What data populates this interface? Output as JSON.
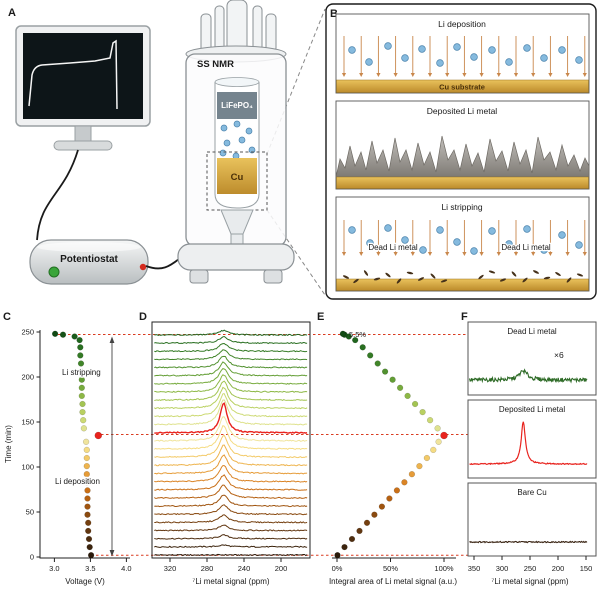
{
  "panel_labels": {
    "a": "A",
    "b": "B",
    "c": "C",
    "d": "D",
    "e": "E",
    "f": "F"
  },
  "panel_a": {
    "potentiostat_label": "Potentiostat",
    "nmr_label": "SS NMR",
    "cell_top_label": "LiFePO₄",
    "cell_bottom_label": "Cu"
  },
  "panel_b": {
    "deposition_title": "Li deposition",
    "substrate_label": "Cu substrate",
    "deposited_title": "Deposited Li metal",
    "stripping_title": "Li stripping",
    "dead_li_label_left": "Dead Li metal",
    "dead_li_label_right": "Dead Li metal",
    "colors": {
      "substrate": "#d7a945",
      "ion": "#85bade",
      "arrow": "#c9874b",
      "deposit": "#a39f9a",
      "flake": "#45311b"
    }
  },
  "chart_data": [
    {
      "id": "c-voltage-vs-time",
      "type": "scatter",
      "xlabel": "Voltage (V)",
      "ylabel": "Time (min)",
      "xticks": [
        3.0,
        3.5,
        4.0
      ],
      "yticks": [
        0,
        50,
        100,
        150,
        200,
        250
      ],
      "xlim": [
        2.8,
        4.05
      ],
      "ylim": [
        0,
        250
      ],
      "annotations": {
        "stripping": "Li stripping",
        "deposition": "Li deposition"
      },
      "highlight_color": "#e8231e",
      "points": [
        {
          "t": 2,
          "v": 3.51,
          "integral": 0.5,
          "color": "#2b1a0a"
        },
        {
          "t": 11,
          "v": 3.49,
          "integral": 7,
          "color": "#3c240d"
        },
        {
          "t": 20,
          "v": 3.48,
          "integral": 14,
          "color": "#4e2d0f"
        },
        {
          "t": 29,
          "v": 3.47,
          "integral": 21,
          "color": "#613610"
        },
        {
          "t": 38,
          "v": 3.47,
          "integral": 28,
          "color": "#754010"
        },
        {
          "t": 47,
          "v": 3.46,
          "integral": 35,
          "color": "#8a4a10"
        },
        {
          "t": 56,
          "v": 3.46,
          "integral": 42,
          "color": "#a05510"
        },
        {
          "t": 65,
          "v": 3.46,
          "integral": 49,
          "color": "#b66112"
        },
        {
          "t": 74,
          "v": 3.46,
          "integral": 56,
          "color": "#ca7018"
        },
        {
          "t": 83,
          "v": 3.45,
          "integral": 63,
          "color": "#da8426"
        },
        {
          "t": 92,
          "v": 3.45,
          "integral": 70,
          "color": "#e69c38"
        },
        {
          "t": 101,
          "v": 3.45,
          "integral": 77,
          "color": "#eeb44e"
        },
        {
          "t": 110,
          "v": 3.45,
          "integral": 84,
          "color": "#f3ca68"
        },
        {
          "t": 119,
          "v": 3.45,
          "integral": 90,
          "color": "#f5dc84"
        },
        {
          "t": 128,
          "v": 3.44,
          "integral": 95,
          "color": "#f0e49c"
        },
        {
          "t": 135,
          "v": 3.61,
          "integral": 100,
          "color": "#e8231e"
        },
        {
          "t": 143,
          "v": 3.41,
          "integral": 94,
          "color": "#dfe28e"
        },
        {
          "t": 152,
          "v": 3.4,
          "integral": 87,
          "color": "#cdda74"
        },
        {
          "t": 161,
          "v": 3.39,
          "integral": 80,
          "color": "#b9d060"
        },
        {
          "t": 170,
          "v": 3.39,
          "integral": 73,
          "color": "#a3c452"
        },
        {
          "t": 179,
          "v": 3.38,
          "integral": 66,
          "color": "#8db846"
        },
        {
          "t": 188,
          "v": 3.38,
          "integral": 59,
          "color": "#77ab3d"
        },
        {
          "t": 197,
          "v": 3.38,
          "integral": 52,
          "color": "#639e35"
        },
        {
          "t": 206,
          "v": 3.37,
          "integral": 45,
          "color": "#51912f"
        },
        {
          "t": 215,
          "v": 3.37,
          "integral": 38,
          "color": "#418529"
        },
        {
          "t": 224,
          "v": 3.36,
          "integral": 31,
          "color": "#347a25"
        },
        {
          "t": 233,
          "v": 3.36,
          "integral": 24,
          "color": "#296f21"
        },
        {
          "t": 241,
          "v": 3.35,
          "integral": 17,
          "color": "#20651e"
        },
        {
          "t": 245,
          "v": 3.28,
          "integral": 11,
          "color": "#1a5c1b"
        },
        {
          "t": 247,
          "v": 3.12,
          "integral": 7,
          "color": "#155317"
        },
        {
          "t": 248,
          "v": 3.01,
          "integral": 5.5,
          "color": "#114a14"
        }
      ]
    },
    {
      "id": "d-nmr-stack",
      "type": "line-stack",
      "xlabel": "⁷Li metal signal (ppm)",
      "xticks": [
        320,
        280,
        240,
        200
      ],
      "x_axis_reversed": true,
      "peak_center_ppm": 262,
      "note": "one spectrum per point of chart C (t = 2 to 241 min, bottom to top); peak amplitude proportional to integral; red spectrum = 100% deposition maximum"
    },
    {
      "id": "e-integral-vs-time",
      "type": "scatter",
      "xlabel": "Integral area of Li metal signal (a.u.)",
      "xtick_labels": [
        "0%",
        "50%",
        "100%"
      ],
      "xtick_values": [
        0,
        50,
        100
      ],
      "annotation_top": "5.5%",
      "points_ref": "same points as chart c-voltage-vs-time (integral vs t)"
    },
    {
      "id": "f-reference-spectra",
      "type": "line",
      "xlabel": "⁷Li metal signal (ppm)",
      "xticks": [
        350,
        300,
        250,
        200,
        150
      ],
      "x_axis_reversed": true,
      "panels": [
        {
          "title": "Dead Li metal",
          "scale_label": "×6",
          "color": "#2e6b27"
        },
        {
          "title": "Deposited Li metal",
          "color": "#e8231e"
        },
        {
          "title": "Bare Cu",
          "color": "#3a2413"
        }
      ]
    }
  ]
}
